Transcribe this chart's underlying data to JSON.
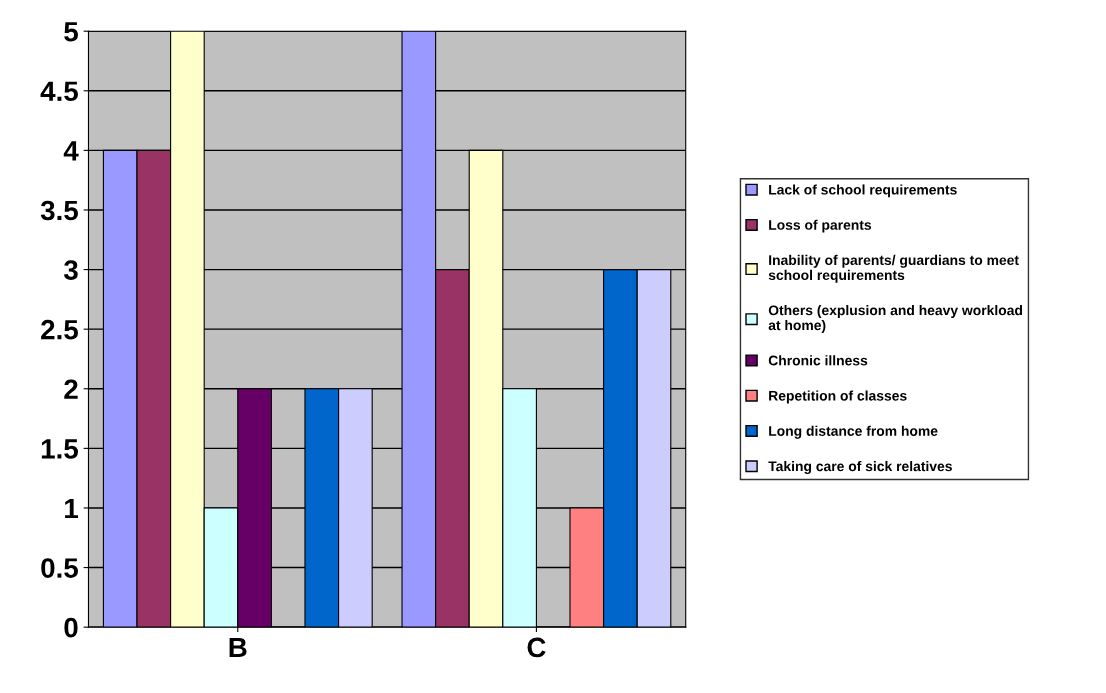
{
  "chart_data": {
    "type": "bar",
    "categories": [
      "B",
      "C"
    ],
    "series": [
      {
        "name": "Lack of school requirements",
        "color": "#9999ff",
        "values": [
          4,
          5
        ]
      },
      {
        "name": "Loss of parents",
        "color": "#993366",
        "values": [
          4,
          3
        ]
      },
      {
        "name": "Inability of parents/ guardians to meet\nschool requirements",
        "color": "#ffffcc",
        "values": [
          5,
          4
        ]
      },
      {
        "name": "Others (explusion and heavy workload\nat home)",
        "color": "#ccffff",
        "values": [
          1,
          2
        ]
      },
      {
        "name": "Chronic illness",
        "color": "#660066",
        "values": [
          2,
          0
        ]
      },
      {
        "name": "Repetition of classes",
        "color": "#ff8080",
        "values": [
          0,
          1
        ]
      },
      {
        "name": "Long distance from home",
        "color": "#0066cc",
        "values": [
          2,
          3
        ]
      },
      {
        "name": "Taking care of sick relatives",
        "color": "#ccccff",
        "values": [
          2,
          3
        ]
      }
    ],
    "ylim": [
      0,
      5
    ],
    "yticks": [
      0,
      0.5,
      1,
      1.5,
      2,
      2.5,
      3,
      3.5,
      4,
      4.5,
      5
    ],
    "grid": "y",
    "legend": "right"
  }
}
